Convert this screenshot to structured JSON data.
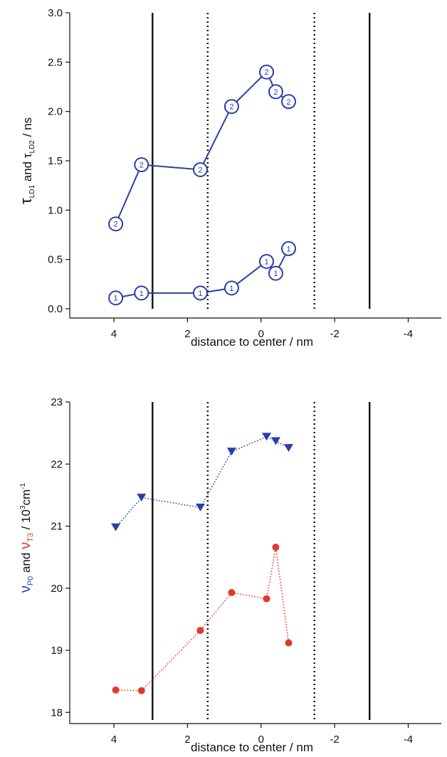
{
  "chart_data": [
    {
      "type": "line",
      "xlabel": "distance to center / nm",
      "ylabel": {
        "main": "τ",
        "sub1": "LD1",
        "mid": " and τ",
        "sub2": "LD2",
        "tail": " / ns"
      },
      "xlim": [
        5.2,
        -4.9
      ],
      "ylim": [
        0,
        3
      ],
      "xticks": [
        4,
        2,
        0,
        -2,
        -4
      ],
      "yticks": [
        0,
        0.5,
        1.0,
        1.5,
        2.0,
        2.5,
        3.0
      ],
      "ytick_labels": [
        "0.0",
        "0.5",
        "1.0",
        "1.5",
        "2.0",
        "2.5",
        "3.0"
      ],
      "solid_lines_x": [
        2.95,
        -2.95
      ],
      "dotted_lines_x": [
        1.45,
        -1.45
      ],
      "series": [
        {
          "marker_label": "1",
          "color": "#2b3ea8",
          "style": "solid",
          "marker": "circle-label",
          "x": [
            3.95,
            3.25,
            1.65,
            0.8,
            -0.15,
            -0.4,
            -0.75
          ],
          "y": [
            0.11,
            0.16,
            0.16,
            0.21,
            0.48,
            0.36,
            0.61
          ]
        },
        {
          "marker_label": "2",
          "color": "#2b3ea8",
          "style": "solid",
          "marker": "circle-label",
          "x": [
            3.95,
            3.25,
            1.65,
            0.8,
            -0.15,
            -0.4,
            -0.75
          ],
          "y": [
            0.86,
            1.46,
            1.41,
            2.05,
            2.4,
            2.2,
            2.1
          ]
        }
      ]
    },
    {
      "type": "line",
      "xlabel": "distance to center / nm",
      "ylabel": {
        "nu": "ν",
        "sub_p": "P0",
        "and": " and ",
        "sub_t": "T3",
        "tail": " / 10",
        "sup1": "3",
        "cm": "cm",
        "sup2": "-1"
      },
      "ylabel_colors": {
        "p": "#2b3ea8",
        "t": "#e03a2a",
        "rest": "#111111"
      },
      "xlim": [
        5.2,
        -4.9
      ],
      "ylim": [
        17.9,
        23
      ],
      "xticks": [
        4,
        2,
        0,
        -2,
        -4
      ],
      "yticks": [
        18,
        19,
        20,
        21,
        22,
        23
      ],
      "ytick_labels": [
        "18",
        "19",
        "20",
        "21",
        "22",
        "23"
      ],
      "solid_lines_x": [
        2.95,
        -2.95
      ],
      "dotted_lines_x": [
        1.45,
        -1.45
      ],
      "series": [
        {
          "color": "#2b3ea8",
          "style": "dotted",
          "marker": "triangle-down",
          "x": [
            3.95,
            3.25,
            1.65,
            0.8,
            -0.15,
            -0.4,
            -0.75
          ],
          "y": [
            20.98,
            21.46,
            21.3,
            22.2,
            22.44,
            22.37,
            22.26
          ]
        },
        {
          "color": "#e03a2a",
          "style": "dotted",
          "marker": "dot",
          "x": [
            3.95,
            3.25,
            1.65,
            0.8,
            -0.15,
            -0.4,
            -0.75
          ],
          "y": [
            18.36,
            18.35,
            19.32,
            19.93,
            19.83,
            20.66,
            19.12
          ]
        }
      ]
    }
  ]
}
